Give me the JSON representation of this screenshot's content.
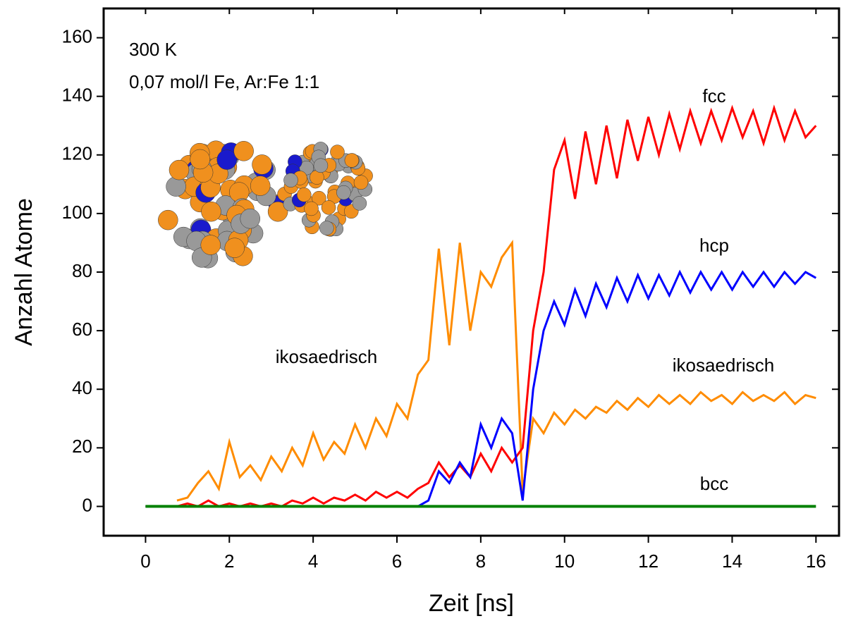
{
  "chart_data": {
    "type": "line",
    "xlabel": "Zeit [ns]",
    "ylabel": "Anzahl Atome",
    "annotations": [
      "300 K",
      "0,07 mol/l Fe, Ar:Fe 1:1",
      "fcc",
      "hcp",
      "ikosaedrisch",
      "ikosaedrisch",
      "bcc"
    ],
    "x": [
      0,
      0.25,
      0.5,
      0.75,
      1,
      1.25,
      1.5,
      1.75,
      2,
      2.25,
      2.5,
      2.75,
      3,
      3.25,
      3.5,
      3.75,
      4,
      4.25,
      4.5,
      4.75,
      5,
      5.25,
      5.5,
      5.75,
      6,
      6.25,
      6.5,
      6.75,
      7,
      7.25,
      7.5,
      7.75,
      8,
      8.25,
      8.5,
      8.75,
      9,
      9.25,
      9.5,
      9.75,
      10,
      10.25,
      10.5,
      10.75,
      11,
      11.25,
      11.5,
      11.75,
      12,
      12.25,
      12.5,
      12.75,
      13,
      13.25,
      13.5,
      13.75,
      14,
      14.25,
      14.5,
      14.75,
      15,
      15.25,
      15.5,
      15.75,
      16
    ],
    "series": [
      {
        "name": "ikosaedrisch",
        "color": "#ff8c00",
        "values": [
          null,
          null,
          null,
          2,
          3,
          8,
          12,
          6,
          22,
          10,
          14,
          9,
          17,
          12,
          20,
          14,
          25,
          16,
          22,
          18,
          28,
          20,
          30,
          24,
          35,
          30,
          45,
          50,
          88,
          55,
          90,
          60,
          80,
          75,
          85,
          90,
          5,
          30,
          25,
          32,
          28,
          33,
          30,
          34,
          32,
          36,
          33,
          37,
          34,
          38,
          35,
          38,
          35,
          39,
          36,
          38,
          35,
          39,
          36,
          38,
          36,
          39,
          35,
          38,
          37
        ]
      },
      {
        "name": "fcc",
        "color": "#ff0000",
        "values": [
          0,
          0,
          0,
          0,
          1,
          0,
          2,
          0,
          1,
          0,
          1,
          0,
          1,
          0,
          2,
          1,
          3,
          1,
          3,
          2,
          4,
          2,
          5,
          3,
          5,
          3,
          6,
          8,
          15,
          10,
          14,
          10,
          18,
          12,
          20,
          15,
          20,
          60,
          80,
          115,
          125,
          105,
          128,
          110,
          130,
          112,
          132,
          118,
          133,
          120,
          134,
          122,
          135,
          124,
          135,
          125,
          136,
          126,
          135,
          124,
          136,
          125,
          135,
          126,
          130
        ]
      },
      {
        "name": "hcp",
        "color": "#0000ff",
        "values": [
          0,
          0,
          0,
          0,
          0,
          0,
          0,
          0,
          0,
          0,
          0,
          0,
          0,
          0,
          0,
          0,
          0,
          0,
          0,
          0,
          0,
          0,
          0,
          0,
          0,
          0,
          0,
          2,
          12,
          8,
          15,
          10,
          28,
          20,
          30,
          25,
          2,
          40,
          60,
          70,
          62,
          74,
          65,
          76,
          68,
          78,
          70,
          79,
          71,
          79,
          72,
          80,
          73,
          80,
          74,
          80,
          74,
          80,
          75,
          80,
          75,
          80,
          76,
          80,
          78
        ]
      },
      {
        "name": "bcc",
        "color": "#008000",
        "values": [
          0,
          0,
          0,
          0,
          0,
          0,
          0,
          0,
          0,
          0,
          0,
          0,
          0,
          0,
          0,
          0,
          0,
          0,
          0,
          0,
          0,
          0,
          0,
          0,
          0,
          0,
          0,
          0,
          0,
          0,
          0,
          0,
          0,
          0,
          0,
          0,
          0,
          0,
          0,
          0,
          0,
          0,
          0,
          0,
          0,
          0,
          0,
          0,
          0,
          0,
          0,
          0,
          0,
          0,
          0,
          0,
          0,
          0,
          0,
          0,
          0,
          0,
          0,
          0,
          0
        ]
      }
    ],
    "xlim": [
      -1,
      16.55
    ],
    "ylim": [
      -10,
      170
    ],
    "xticks": [
      0,
      2,
      4,
      6,
      8,
      10,
      12,
      14,
      16
    ],
    "yticks": [
      0,
      20,
      40,
      60,
      80,
      100,
      120,
      140,
      160
    ]
  }
}
